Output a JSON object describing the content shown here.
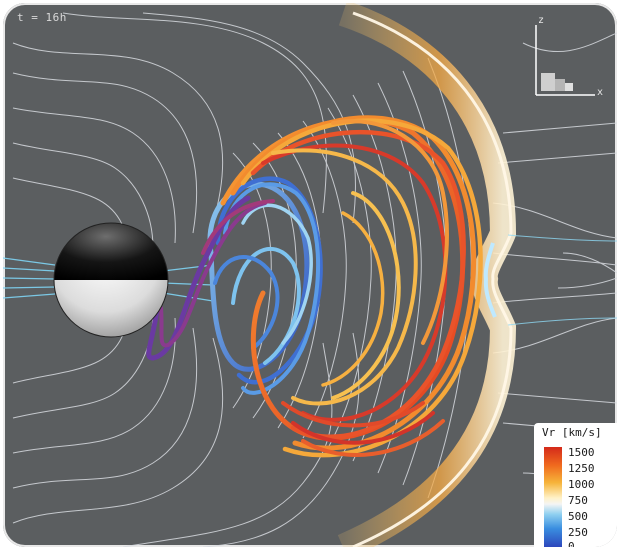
{
  "time_label": "t = 16h",
  "axes": {
    "y_label": "z",
    "x_label": "x"
  },
  "legend": {
    "title": "Vr [km/s]",
    "ticks": [
      "1500",
      "1250",
      "1000",
      "750",
      "500",
      "250",
      "0"
    ],
    "colors": [
      "#d42a1a",
      "#f06a1e",
      "#f6b43a",
      "#fff2c8",
      "#8fd0f0",
      "#3a8ee0",
      "#2b3fb8"
    ]
  },
  "colors": {
    "background": "#5b5e60",
    "contour": "#d8dbe0"
  }
}
